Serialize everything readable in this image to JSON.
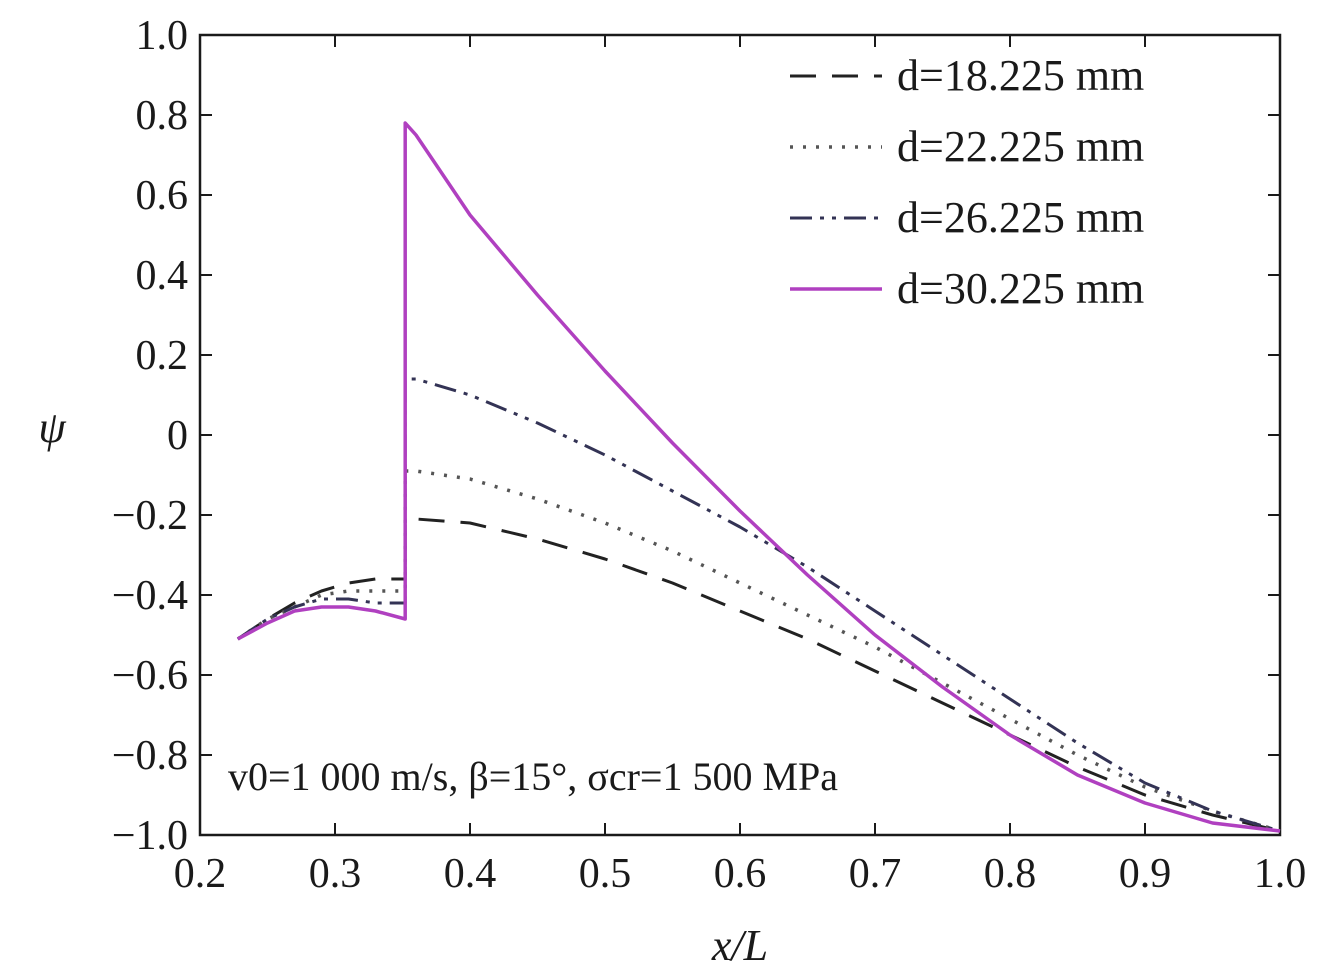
{
  "chart_data": {
    "type": "line",
    "xlabel": "x/L",
    "ylabel": "ψ",
    "xlim": [
      0.2,
      1.0
    ],
    "ylim": [
      -1.0,
      1.0
    ],
    "xticks": [
      "0.2",
      "0.3",
      "0.4",
      "0.5",
      "0.6",
      "0.7",
      "0.8",
      "0.9",
      "1.0"
    ],
    "yticks": [
      "−1.0",
      "−0.8",
      "−0.6",
      "−0.4",
      "−0.2",
      "0",
      "0.2",
      "0.4",
      "0.6",
      "0.8",
      "1.0"
    ],
    "legend_position": "top-right",
    "annotation": "v0=1 000 m/s, β=15°, σcr=1 500 MPa",
    "colors": {
      "d18": "#222222",
      "d22": "#555555",
      "d26": "#333355",
      "d30": "#b040c0"
    },
    "series": [
      {
        "name": "d=18.225 mm",
        "style": "dashed",
        "x": [
          0.228,
          0.25,
          0.27,
          0.29,
          0.31,
          0.33,
          0.352,
          0.352,
          0.36,
          0.4,
          0.45,
          0.5,
          0.55,
          0.6,
          0.65,
          0.7,
          0.75,
          0.8,
          0.85,
          0.9,
          0.95,
          1.0
        ],
        "y": [
          -0.51,
          -0.46,
          -0.42,
          -0.39,
          -0.37,
          -0.36,
          -0.36,
          -0.22,
          -0.21,
          -0.22,
          -0.26,
          -0.31,
          -0.37,
          -0.44,
          -0.51,
          -0.59,
          -0.67,
          -0.75,
          -0.83,
          -0.9,
          -0.95,
          -0.99
        ]
      },
      {
        "name": "d=22.225 mm",
        "style": "dotted",
        "x": [
          0.228,
          0.25,
          0.27,
          0.29,
          0.31,
          0.33,
          0.352,
          0.352,
          0.36,
          0.4,
          0.45,
          0.5,
          0.55,
          0.6,
          0.65,
          0.7,
          0.75,
          0.8,
          0.85,
          0.9,
          0.95,
          1.0
        ],
        "y": [
          -0.51,
          -0.46,
          -0.43,
          -0.4,
          -0.39,
          -0.39,
          -0.39,
          -0.09,
          -0.09,
          -0.11,
          -0.16,
          -0.22,
          -0.29,
          -0.37,
          -0.45,
          -0.53,
          -0.62,
          -0.71,
          -0.8,
          -0.88,
          -0.94,
          -0.99
        ]
      },
      {
        "name": "d=26.225 mm",
        "style": "dashdotdot",
        "x": [
          0.228,
          0.25,
          0.27,
          0.29,
          0.31,
          0.33,
          0.352,
          0.352,
          0.36,
          0.4,
          0.45,
          0.5,
          0.55,
          0.6,
          0.65,
          0.7,
          0.75,
          0.8,
          0.85,
          0.9,
          0.95,
          1.0
        ],
        "y": [
          -0.51,
          -0.46,
          -0.43,
          -0.41,
          -0.41,
          -0.42,
          -0.42,
          0.14,
          0.14,
          0.1,
          0.03,
          -0.05,
          -0.14,
          -0.23,
          -0.33,
          -0.44,
          -0.55,
          -0.66,
          -0.77,
          -0.87,
          -0.94,
          -0.99
        ]
      },
      {
        "name": "d=30.225 mm",
        "style": "solid",
        "x": [
          0.228,
          0.25,
          0.27,
          0.29,
          0.31,
          0.33,
          0.352,
          0.352,
          0.36,
          0.4,
          0.45,
          0.5,
          0.55,
          0.6,
          0.65,
          0.7,
          0.75,
          0.8,
          0.85,
          0.9,
          0.95,
          1.0
        ],
        "y": [
          -0.51,
          -0.47,
          -0.44,
          -0.43,
          -0.43,
          -0.44,
          -0.46,
          0.78,
          0.75,
          0.55,
          0.35,
          0.16,
          -0.02,
          -0.19,
          -0.35,
          -0.5,
          -0.63,
          -0.75,
          -0.85,
          -0.92,
          -0.97,
          -0.99
        ]
      }
    ]
  }
}
